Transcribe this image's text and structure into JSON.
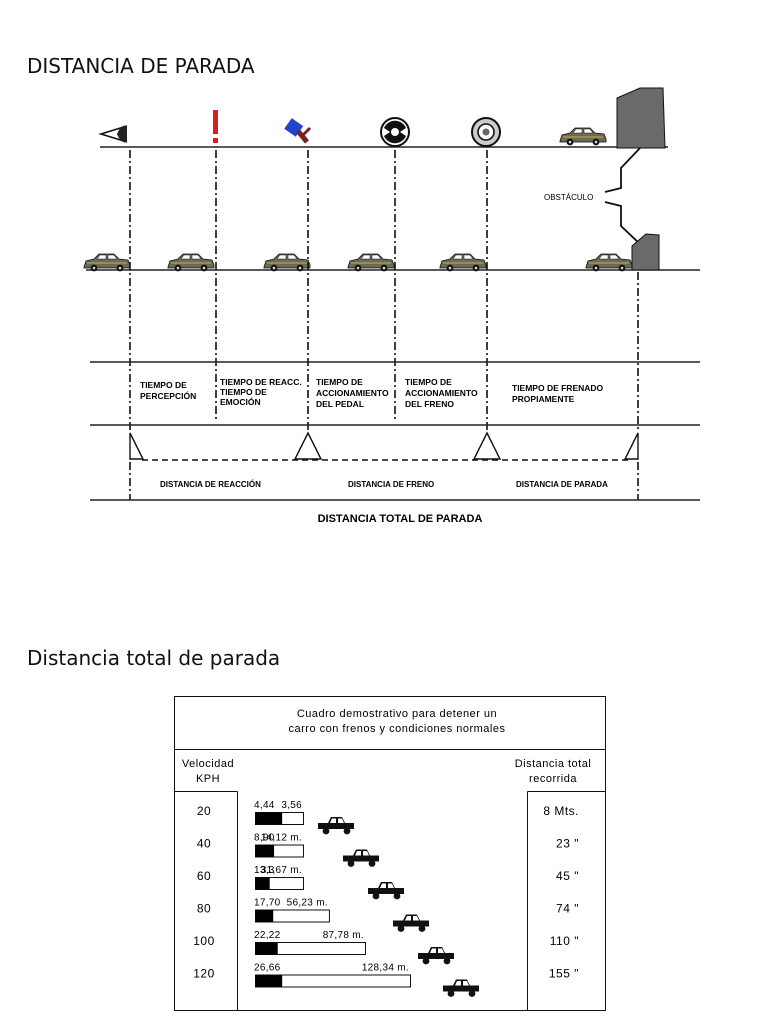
{
  "section1": {
    "title": "DISTANCIA DE PARADA",
    "icons": [
      "eye-icon",
      "exclamation-icon",
      "pedal-icon",
      "brake-drum-icon",
      "tire-icon",
      "car-icon"
    ],
    "obstacle_label": "OBSTÁCULO",
    "phases": [
      [
        "TIEMPO DE",
        "PERCEPCIÓN"
      ],
      [
        "TIEMPO DE REACC.",
        "TIEMPO DE",
        "EMOCIÓN"
      ],
      [
        "TIEMPO DE",
        "ACCIONAMIENTO",
        "DEL PEDAL"
      ],
      [
        "TIEMPO DE",
        "ACCIONAMIENTO",
        "DEL FRENO"
      ],
      [
        "TIEMPO DE FRENADO",
        "PROPIAMENTE"
      ]
    ],
    "distances": {
      "reaction": "DISTANCIA DE REACCIÓN",
      "braking": "DISTANCIA DE FRENO",
      "stopping": "DISTANCIA DE PARADA"
    },
    "total": "DISTANCIA TOTAL DE PARADA"
  },
  "section2": {
    "title": "Distancia total de parada",
    "table": {
      "header_line1": "Cuadro demostrativo para detener un",
      "header_line2": "carro con frenos y condiciones normales",
      "left_header_line1": "Velocidad",
      "left_header_line2": "KPH",
      "right_header_line1": "Distancia total",
      "right_header_line2": "recorrida",
      "rows": [
        {
          "speed": "20",
          "reaction_label": "4,44",
          "braking_label": "3,56",
          "reaction": 4.44,
          "braking": 3.56,
          "total": "8 Mts."
        },
        {
          "speed": "40",
          "reaction_label": "8,90",
          "braking_label": "14,12 m.",
          "reaction": 8.9,
          "braking": 14.12,
          "total": "23  \""
        },
        {
          "speed": "60",
          "reaction_label": "13,3",
          "braking_label": "31,67 m.",
          "reaction": 13.3,
          "braking": 31.67,
          "total": "45  \""
        },
        {
          "speed": "80",
          "reaction_label": "17,70",
          "braking_label": "56,23 m.",
          "reaction": 17.7,
          "braking": 56.23,
          "total": "74  \""
        },
        {
          "speed": "100",
          "reaction_label": "22,22",
          "braking_label": "87,78 m.",
          "reaction": 22.22,
          "braking": 87.78,
          "total": "110  \""
        },
        {
          "speed": "120",
          "reaction_label": "26,66",
          "braking_label": "128,34 m.",
          "reaction": 26.66,
          "braking": 128.34,
          "total": "155  \""
        }
      ]
    }
  }
}
